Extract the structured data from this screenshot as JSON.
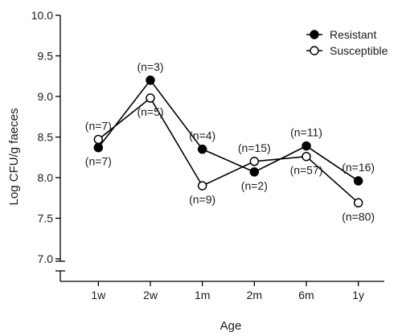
{
  "chart_data": {
    "type": "line",
    "title": "",
    "xlabel": "Age",
    "ylabel": "Log CFU/g faeces",
    "categories": [
      "1w",
      "2w",
      "1m",
      "2m",
      "6m",
      "1y"
    ],
    "ylim": [
      7.0,
      10.0
    ],
    "yticks": [
      "7.0",
      "7.5",
      "8.0",
      "8.5",
      "9.0",
      "9.5",
      "10.0"
    ],
    "axis_break": true,
    "grid": false,
    "legend_position": "top-right",
    "series": [
      {
        "name": "Resistant",
        "marker": "filled-circle",
        "color": "#000000",
        "values": [
          8.37,
          9.2,
          8.35,
          8.07,
          8.39,
          7.96
        ],
        "labels": [
          "(n=7)",
          "(n=3)",
          "(n=4)",
          "(n=2)",
          "(n=11)",
          "(n=16)"
        ]
      },
      {
        "name": "Susceptible",
        "marker": "open-circle",
        "color": "#000000",
        "values": [
          8.47,
          8.98,
          7.9,
          8.2,
          8.26,
          7.69
        ],
        "labels": [
          "(n=7)",
          "(n=5)",
          "(n=9)",
          "(n=15)",
          "(n=57)",
          "(n=80)"
        ]
      }
    ]
  }
}
